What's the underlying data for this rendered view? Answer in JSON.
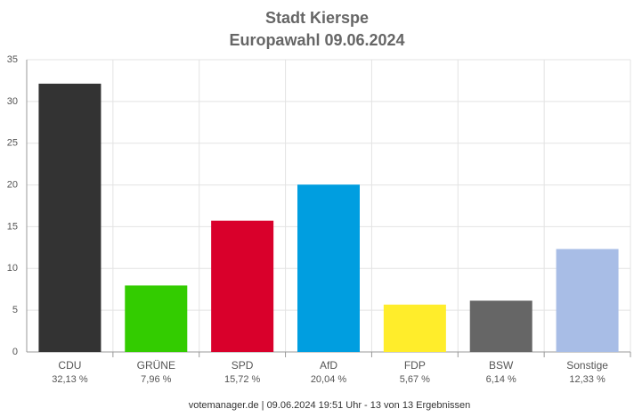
{
  "chart_data": {
    "type": "bar",
    "title": "Stadt Kierspe",
    "subtitle": "Europawahl 09.06.2024",
    "categories": [
      "CDU",
      "GRÜNE",
      "SPD",
      "AfD",
      "FDP",
      "BSW",
      "Sonstige"
    ],
    "values": [
      32.13,
      7.96,
      15.72,
      20.04,
      5.67,
      6.14,
      12.33
    ],
    "value_labels": [
      "32,13 %",
      "7,96 %",
      "15,72 %",
      "20,04 %",
      "5,67 %",
      "6,14 %",
      "12,33 %"
    ],
    "colors": [
      "#333333",
      "#33cc00",
      "#d9002b",
      "#009ee0",
      "#ffed2b",
      "#666666",
      "#a8bde6"
    ],
    "ylim": [
      0,
      35
    ],
    "yticks": [
      0,
      5,
      10,
      15,
      20,
      25,
      30,
      35
    ],
    "grid": true,
    "footer": "votemanager.de | 09.06.2024 19:51 Uhr - 13 von 13 Ergebnissen"
  }
}
